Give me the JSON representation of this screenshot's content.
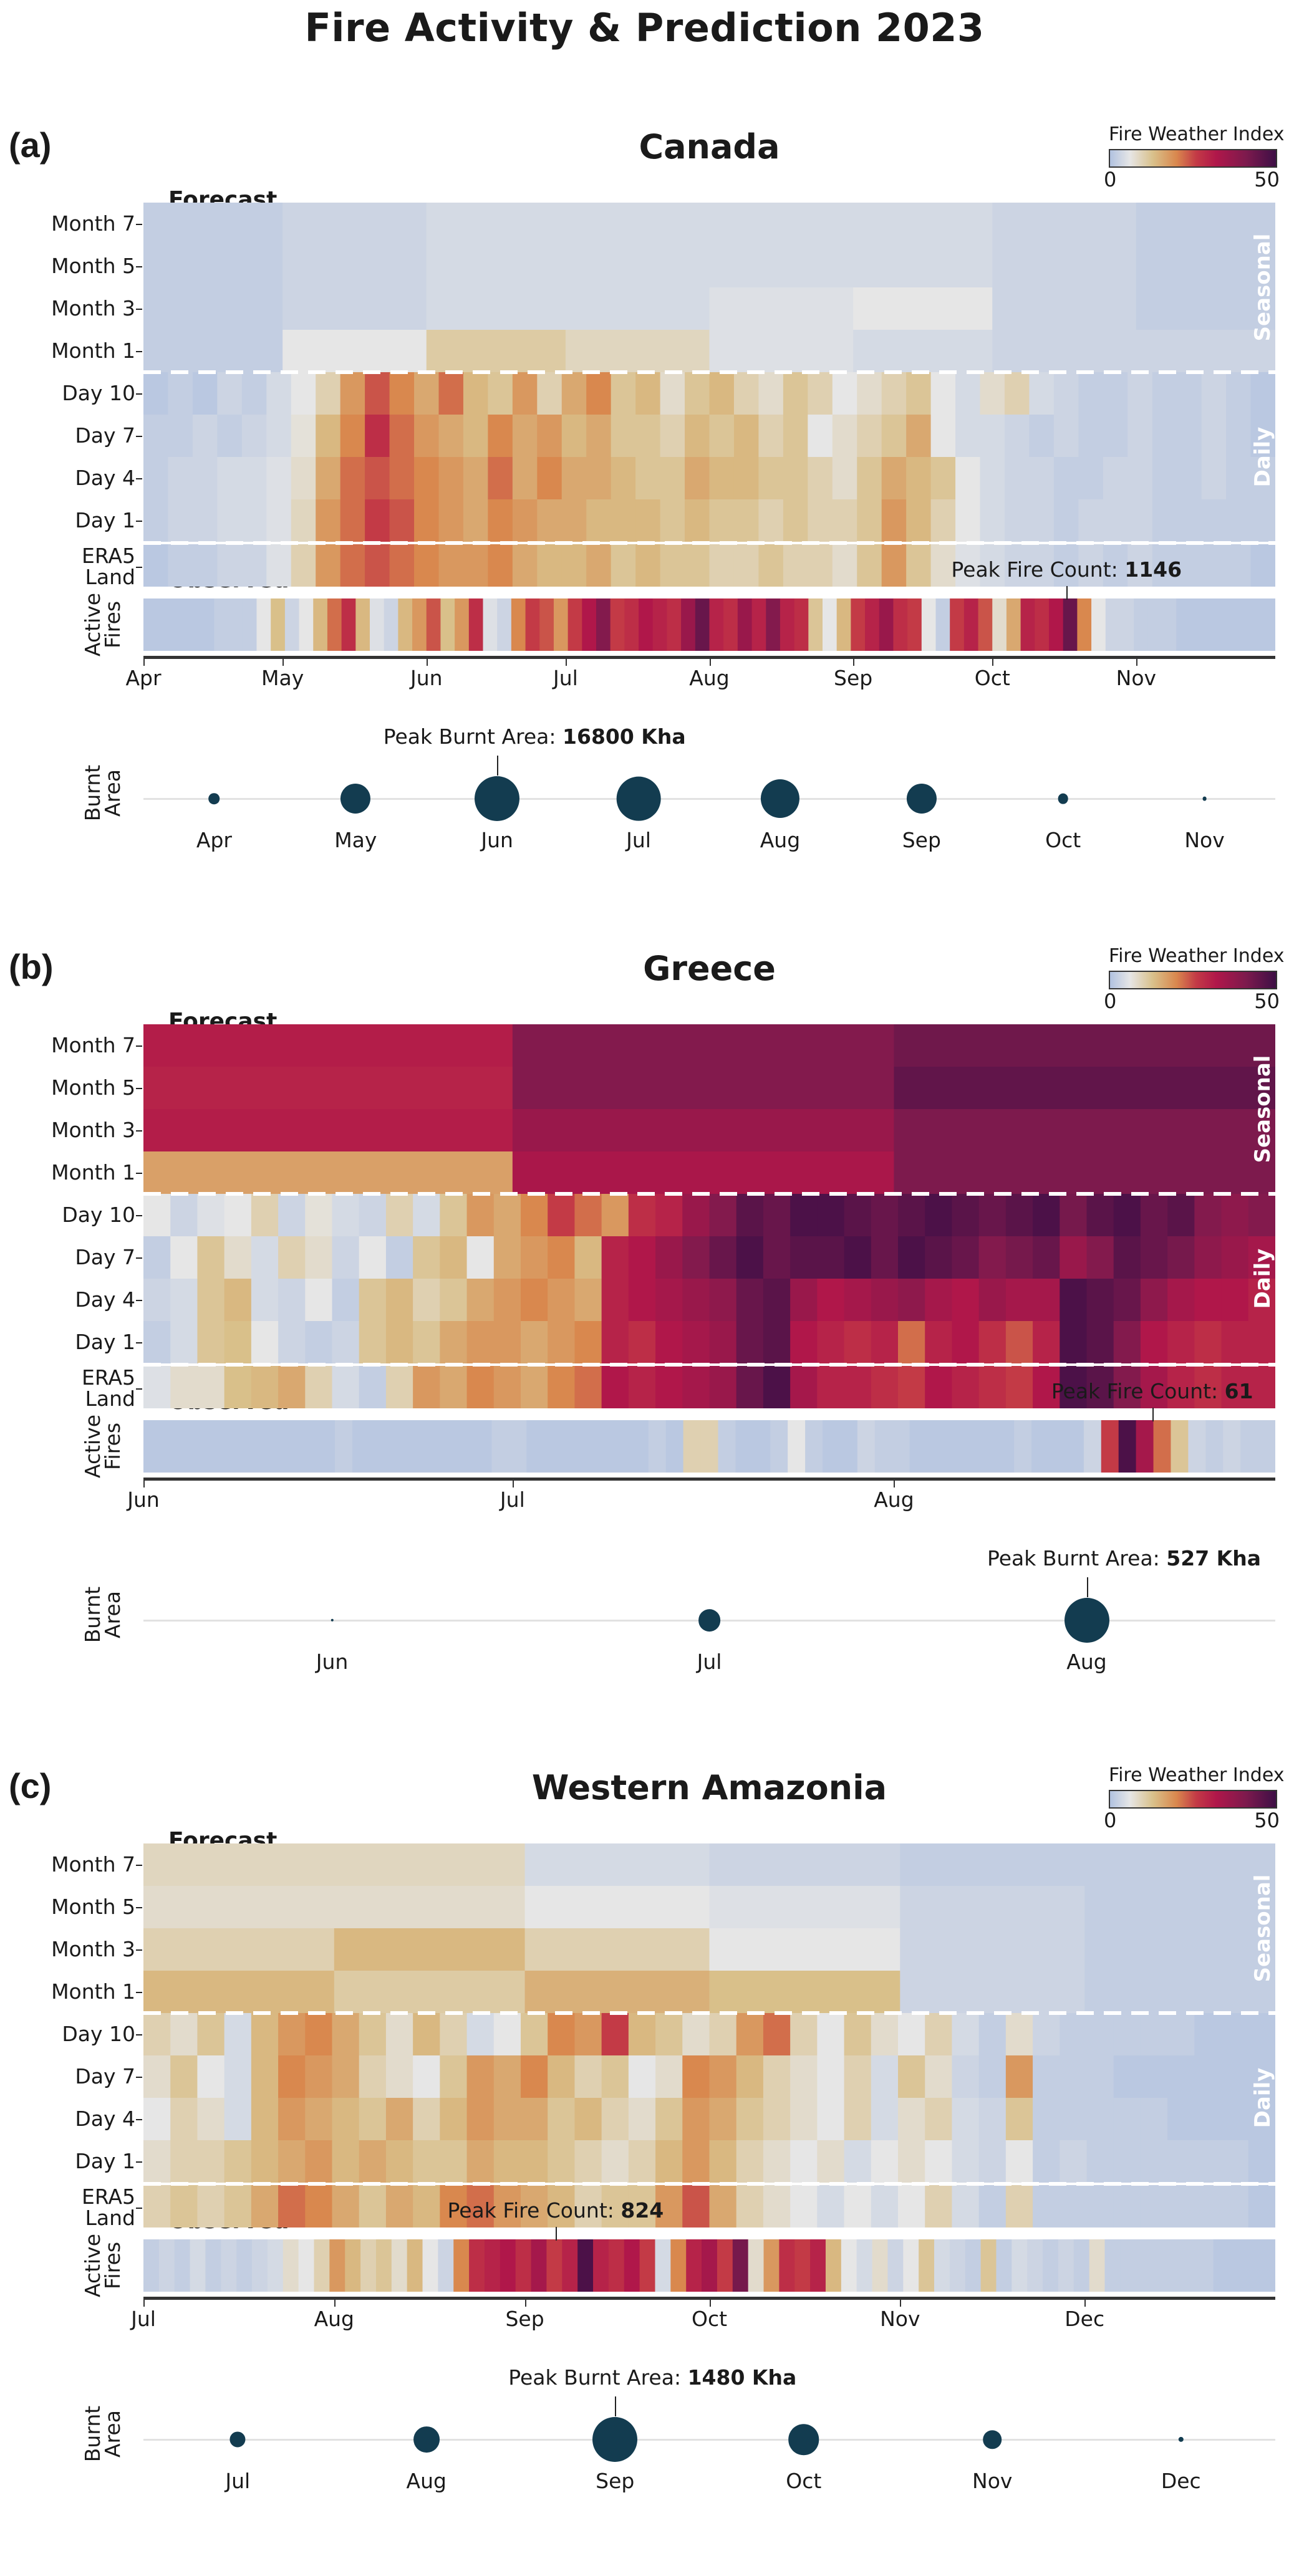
{
  "title": "Fire Activity & Prediction 2023",
  "colorbar": {
    "title": "Fire Weather Index",
    "min": 0,
    "max": 50,
    "min_label": "0",
    "max_label": "50",
    "stops": [
      [
        0,
        "#b1c2e0"
      ],
      [
        6,
        "#e6e6e6"
      ],
      [
        13,
        "#d9c08a"
      ],
      [
        20,
        "#d9884e"
      ],
      [
        26,
        "#c33a46"
      ],
      [
        32,
        "#b0174a"
      ],
      [
        41,
        "#7d1a4d"
      ],
      [
        50,
        "#3e0f46"
      ]
    ]
  },
  "labels": {
    "forecast": "Forecast",
    "observed": "Observed",
    "seasonal": "Seasonal",
    "daily": "Daily",
    "active_fires": [
      "Active",
      "Fires"
    ],
    "burnt_area": [
      "Burnt",
      "Area"
    ],
    "peak_fire_prefix": "Peak Fire Count: ",
    "peak_burnt_prefix": "Peak Burnt Area: "
  },
  "rows": [
    "Month 7",
    "Month 5",
    "Month 3",
    "Month 1",
    "Day 10",
    "Day 7",
    "Day 4",
    "Day 1",
    "ERA5 Land"
  ],
  "chart_data": [
    {
      "type": "heatmap",
      "letter": "(a)",
      "title": "Canada",
      "x_start": "Apr 1",
      "x_end": "Nov 30",
      "days": 244,
      "month_ticks": [
        "Apr",
        "May",
        "Jun",
        "Jul",
        "Aug",
        "Sep",
        "Oct",
        "Nov"
      ],
      "month_tick_days": [
        0,
        30,
        61,
        91,
        122,
        153,
        183,
        214
      ],
      "seasonal_blocks": [
        0,
        30,
        61,
        91,
        122,
        153,
        183,
        214,
        244
      ],
      "seasonal": {
        "Month 7": [
          2,
          3,
          4,
          4,
          4,
          4,
          3,
          2
        ],
        "Month 5": [
          2,
          3,
          4,
          4,
          4,
          4,
          3,
          2
        ],
        "Month 3": [
          2,
          3,
          4,
          4,
          5,
          6,
          3,
          2
        ],
        "Month 1": [
          2,
          6,
          11,
          9,
          5,
          4,
          3,
          3
        ]
      },
      "daily": {
        "Day 10": [
          1,
          2,
          1,
          3,
          2,
          4,
          6,
          10,
          18,
          24,
          20,
          16,
          22,
          14,
          12,
          18,
          10,
          16,
          20,
          12,
          14,
          8,
          12,
          14,
          10,
          8,
          12,
          10,
          6,
          8,
          10,
          12,
          6,
          4,
          8,
          10,
          4,
          3,
          2,
          2,
          3,
          2,
          2,
          3,
          2,
          1
        ],
        "Day 7": [
          2,
          2,
          3,
          2,
          3,
          4,
          7,
          14,
          20,
          28,
          22,
          18,
          16,
          14,
          20,
          16,
          18,
          14,
          16,
          12,
          12,
          10,
          14,
          12,
          14,
          10,
          12,
          6,
          8,
          10,
          12,
          16,
          6,
          4,
          4,
          3,
          2,
          3,
          2,
          2,
          3,
          2,
          2,
          3,
          2,
          1
        ],
        "Day 4": [
          2,
          3,
          3,
          4,
          4,
          5,
          8,
          16,
          22,
          24,
          22,
          20,
          18,
          16,
          22,
          16,
          20,
          16,
          16,
          14,
          12,
          12,
          16,
          14,
          14,
          12,
          12,
          10,
          8,
          12,
          16,
          14,
          12,
          6,
          4,
          3,
          3,
          2,
          2,
          3,
          3,
          2,
          2,
          3,
          2,
          2
        ],
        "Day 1": [
          2,
          3,
          3,
          4,
          4,
          5,
          9,
          18,
          22,
          26,
          24,
          20,
          18,
          16,
          20,
          18,
          16,
          16,
          14,
          14,
          14,
          12,
          14,
          12,
          12,
          10,
          12,
          10,
          10,
          12,
          18,
          14,
          10,
          6,
          4,
          3,
          3,
          2,
          3,
          3,
          3,
          2,
          2,
          2,
          2,
          2
        ],
        "ERA5 Land": [
          1,
          2,
          2,
          3,
          3,
          5,
          10,
          18,
          22,
          24,
          22,
          20,
          18,
          18,
          20,
          16,
          14,
          14,
          16,
          12,
          14,
          12,
          12,
          10,
          10,
          12,
          10,
          10,
          8,
          12,
          18,
          12,
          8,
          5,
          4,
          3,
          3,
          2,
          3,
          2,
          3,
          2,
          2,
          2,
          2,
          1
        ]
      },
      "observed": [
        1,
        1,
        1,
        1,
        1,
        2,
        2,
        2,
        6,
        13,
        3,
        6,
        14,
        22,
        28,
        14,
        5,
        3,
        14,
        18,
        24,
        13,
        18,
        28,
        5,
        3,
        20,
        26,
        24,
        18,
        26,
        32,
        40,
        26,
        28,
        32,
        30,
        28,
        36,
        44,
        30,
        28,
        36,
        30,
        40,
        30,
        28,
        12,
        6,
        14,
        26,
        30,
        36,
        28,
        26,
        6,
        2,
        26,
        30,
        24,
        8,
        16,
        30,
        28,
        32,
        44,
        20,
        6,
        3,
        3,
        2,
        2,
        2,
        1,
        1,
        1,
        1,
        1,
        1,
        1
      ],
      "peak_fire": {
        "label": "1146",
        "day": 199
      },
      "burnt_area_kha": [
        1000,
        7500,
        16800,
        16200,
        12500,
        7500,
        900,
        150
      ],
      "burnt_area_months": [
        "Apr",
        "May",
        "Jun",
        "Jul",
        "Aug",
        "Sep",
        "Oct",
        "Nov"
      ],
      "peak_burnt": {
        "label": "16800 Kha",
        "month_index": 2
      }
    },
    {
      "type": "heatmap",
      "letter": "(b)",
      "title": "Greece",
      "x_start": "Jun 1",
      "x_end": "Aug 31",
      "days": 92,
      "month_ticks": [
        "Jun",
        "Jul",
        "Aug"
      ],
      "month_tick_days": [
        0,
        30,
        61
      ],
      "seasonal_blocks": [
        0,
        30,
        61,
        92
      ],
      "seasonal": {
        "Month 7": [
          31,
          40,
          43
        ],
        "Month 5": [
          30,
          40,
          45
        ],
        "Month 3": [
          31,
          36,
          41
        ],
        "Month 1": [
          17,
          33,
          41
        ]
      },
      "daily": {
        "Day 10": [
          6,
          3,
          5,
          6,
          10,
          3,
          7,
          4,
          3,
          10,
          4,
          12,
          18,
          16,
          20,
          26,
          22,
          18,
          28,
          30,
          36,
          40,
          46,
          44,
          48,
          48,
          46,
          44,
          46,
          48,
          46,
          44,
          46,
          48,
          42,
          46,
          48,
          44,
          46,
          40,
          38,
          40
        ],
        "Day 7": [
          2,
          6,
          12,
          8,
          4,
          10,
          8,
          3,
          6,
          2,
          12,
          14,
          6,
          16,
          18,
          20,
          14,
          30,
          32,
          36,
          40,
          44,
          48,
          44,
          46,
          46,
          48,
          44,
          48,
          46,
          44,
          40,
          42,
          44,
          36,
          40,
          46,
          44,
          42,
          38,
          36,
          34
        ],
        "Day 4": [
          3,
          4,
          12,
          14,
          4,
          3,
          6,
          2,
          12,
          14,
          10,
          12,
          16,
          18,
          20,
          18,
          16,
          30,
          32,
          34,
          36,
          38,
          44,
          46,
          36,
          32,
          34,
          36,
          38,
          34,
          32,
          36,
          34,
          34,
          48,
          46,
          44,
          38,
          34,
          32,
          32,
          30
        ],
        "Day 1": [
          2,
          4,
          12,
          13,
          6,
          3,
          2,
          3,
          12,
          14,
          12,
          16,
          18,
          18,
          16,
          18,
          20,
          30,
          28,
          32,
          34,
          36,
          44,
          46,
          32,
          30,
          28,
          30,
          22,
          30,
          32,
          28,
          24,
          30,
          48,
          46,
          40,
          32,
          30,
          28,
          30,
          30
        ],
        "ERA5 Land": [
          5,
          8,
          8,
          13,
          14,
          16,
          10,
          4,
          2,
          10,
          18,
          16,
          20,
          18,
          16,
          20,
          22,
          32,
          30,
          32,
          34,
          36,
          44,
          48,
          34,
          30,
          30,
          28,
          26,
          32,
          30,
          28,
          26,
          32,
          48,
          46,
          40,
          34,
          30,
          28,
          30,
          30
        ]
      },
      "observed": [
        1,
        1,
        1,
        1,
        1,
        1,
        1,
        1,
        1,
        1,
        1,
        2,
        1,
        1,
        1,
        1,
        1,
        1,
        1,
        1,
        2,
        2,
        1,
        1,
        1,
        1,
        1,
        1,
        1,
        2,
        1,
        10,
        10,
        2,
        1,
        1,
        2,
        6,
        2,
        1,
        1,
        3,
        2,
        2,
        1,
        1,
        1,
        1,
        1,
        1,
        2,
        1,
        1,
        1,
        3,
        26,
        48,
        34,
        22,
        12,
        3,
        2,
        3,
        2,
        2
      ],
      "peak_fire": {
        "label": "61",
        "day": 82
      },
      "burnt_area_kha": [
        2,
        130,
        527
      ],
      "burnt_area_months": [
        "Jun",
        "Jul",
        "Aug"
      ],
      "peak_burnt": {
        "label": "527 Kha",
        "month_index": 2
      }
    },
    {
      "type": "heatmap",
      "letter": "(c)",
      "title": "Western Amazonia",
      "x_start": "Jul 1",
      "x_end": "Dec 31",
      "days": 184,
      "month_ticks": [
        "Jul",
        "Aug",
        "Sep",
        "Oct",
        "Nov",
        "Dec"
      ],
      "month_tick_days": [
        0,
        31,
        62,
        92,
        123,
        153
      ],
      "seasonal_blocks": [
        0,
        31,
        62,
        92,
        123,
        153,
        184
      ],
      "seasonal": {
        "Month 7": [
          9,
          9,
          4,
          3,
          2,
          2
        ],
        "Month 5": [
          8,
          8,
          6,
          5,
          3,
          2
        ],
        "Month 3": [
          10,
          14,
          10,
          6,
          3,
          2
        ],
        "Month 1": [
          14,
          11,
          15,
          13,
          3,
          2
        ]
      },
      "daily": {
        "Day 10": [
          10,
          8,
          12,
          4,
          14,
          18,
          20,
          16,
          12,
          8,
          14,
          10,
          4,
          6,
          12,
          20,
          18,
          26,
          14,
          12,
          8,
          10,
          18,
          22,
          10,
          6,
          12,
          8,
          6,
          10,
          4,
          2,
          8,
          3,
          2,
          2,
          2,
          2,
          2,
          1,
          1,
          1
        ],
        "Day 7": [
          8,
          12,
          6,
          4,
          14,
          20,
          18,
          16,
          10,
          8,
          6,
          12,
          18,
          16,
          20,
          14,
          10,
          12,
          6,
          8,
          20,
          18,
          14,
          10,
          8,
          6,
          10,
          4,
          12,
          8,
          3,
          2,
          18,
          2,
          2,
          2,
          1,
          1,
          1,
          1,
          1,
          1
        ],
        "Day 4": [
          6,
          10,
          8,
          4,
          14,
          18,
          16,
          14,
          12,
          16,
          10,
          14,
          18,
          16,
          16,
          12,
          14,
          10,
          8,
          12,
          18,
          16,
          12,
          10,
          8,
          6,
          10,
          4,
          8,
          10,
          4,
          3,
          12,
          2,
          2,
          2,
          2,
          2,
          1,
          1,
          1,
          1
        ],
        "Day 1": [
          8,
          10,
          10,
          12,
          14,
          16,
          18,
          14,
          16,
          14,
          12,
          12,
          16,
          14,
          14,
          12,
          10,
          8,
          10,
          14,
          18,
          14,
          10,
          8,
          6,
          8,
          4,
          6,
          8,
          6,
          4,
          3,
          6,
          2,
          3,
          2,
          2,
          2,
          2,
          2,
          2,
          1
        ],
        "ERA5 Land": [
          10,
          12,
          10,
          12,
          16,
          22,
          20,
          16,
          12,
          16,
          14,
          20,
          22,
          18,
          16,
          14,
          10,
          12,
          12,
          18,
          24,
          16,
          10,
          8,
          6,
          4,
          6,
          4,
          6,
          10,
          4,
          2,
          10,
          2,
          2,
          2,
          2,
          2,
          2,
          2,
          2,
          1
        ]
      },
      "observed": [
        2,
        3,
        2,
        4,
        2,
        3,
        2,
        3,
        4,
        8,
        6,
        10,
        18,
        14,
        10,
        12,
        8,
        14,
        6,
        3,
        20,
        28,
        30,
        32,
        28,
        34,
        26,
        30,
        48,
        30,
        28,
        32,
        26,
        4,
        20,
        30,
        34,
        26,
        42,
        8,
        18,
        28,
        26,
        30,
        14,
        6,
        4,
        8,
        3,
        6,
        12,
        4,
        3,
        2,
        12,
        2,
        4,
        3,
        2,
        3,
        2,
        8,
        2,
        2,
        2,
        2,
        2,
        2,
        2,
        1,
        1,
        1,
        1
      ],
      "peak_fire": {
        "label": "824",
        "day": 67
      },
      "burnt_area_kha": [
        180,
        500,
        1480,
        700,
        250,
        20
      ],
      "burnt_area_months": [
        "Jul",
        "Aug",
        "Sep",
        "Oct",
        "Nov",
        "Dec"
      ],
      "peak_burnt": {
        "label": "1480 Kha",
        "month_index": 2
      }
    }
  ]
}
